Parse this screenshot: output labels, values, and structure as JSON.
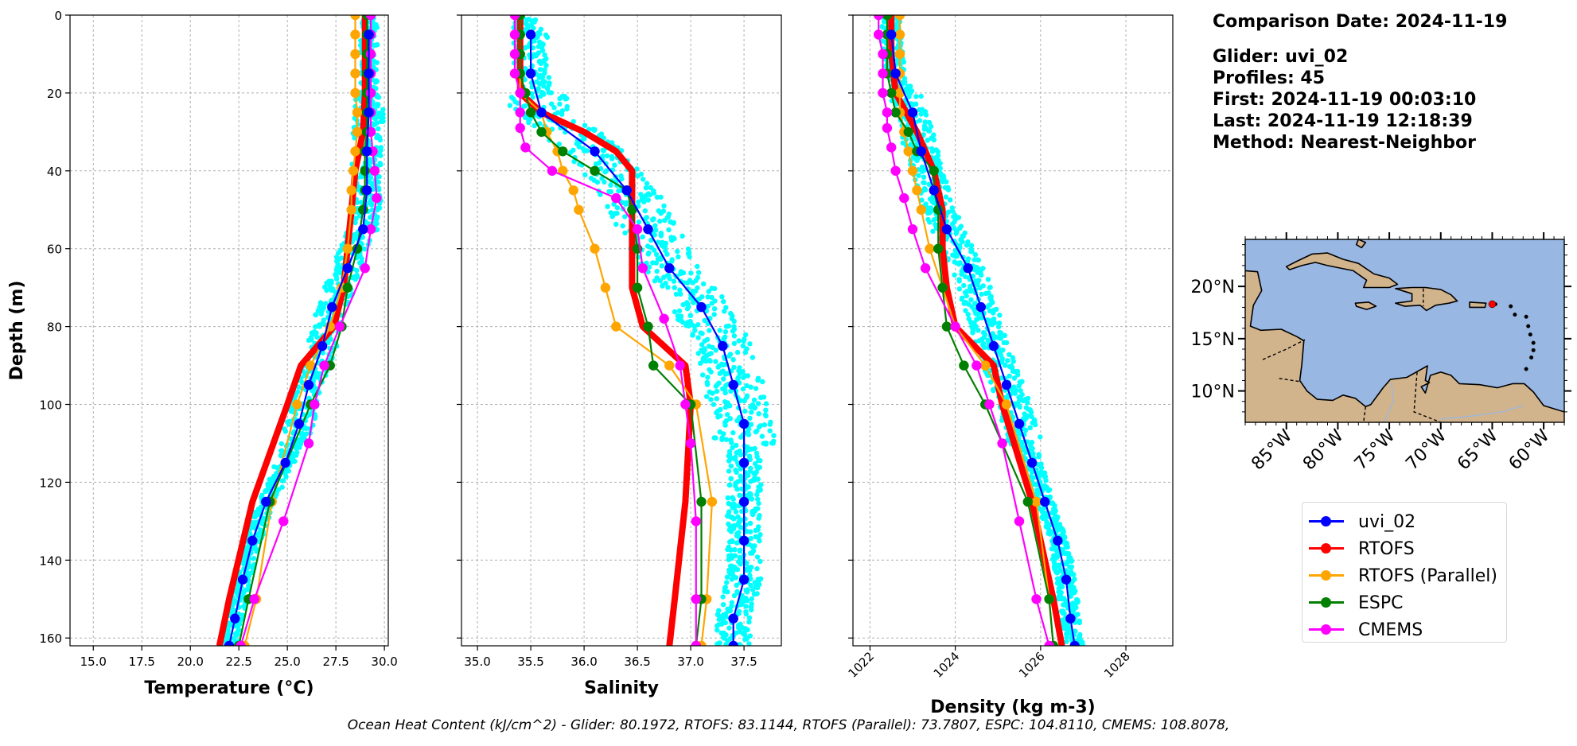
{
  "info": {
    "comparison_date": "Comparison Date: 2024-11-19",
    "glider": "Glider: uvi_02",
    "profiles": "Profiles: 45",
    "first": "First: 2024-11-19 00:03:10",
    "last": "Last: 2024-11-19 12:18:39",
    "method": "Method: Nearest-Neighbor"
  },
  "footer": "Ocean Heat Content (kJ/cm^2) - Glider: 80.1972,  RTOFS: 83.1144,  RTOFS (Parallel): 73.7807,  ESPC: 104.8110,  CMEMS: 108.8078,",
  "legend": [
    {
      "name": "uvi_02",
      "color": "#0000ff"
    },
    {
      "name": "RTOFS",
      "color": "#ff0000"
    },
    {
      "name": "RTOFS (Parallel)",
      "color": "#ffa500"
    },
    {
      "name": "ESPC",
      "color": "#008000"
    },
    {
      "name": "CMEMS",
      "color": "#ff00ff"
    }
  ],
  "colors": {
    "glider_scatter": "#00ffff",
    "ocean": "#99b7e3",
    "land": "#d2b48c",
    "glider_position": "#ff0000"
  },
  "chart_data": [
    {
      "type": "line",
      "xlabel": "Temperature (°C)",
      "ylabel": "Depth (m)",
      "xlim": [
        13.8,
        30.2
      ],
      "ylim": [
        162,
        0
      ],
      "xticks": [
        "15.0",
        "17.5",
        "20.0",
        "22.5",
        "25.0",
        "27.5",
        "30.0"
      ],
      "yticks": [
        "0",
        "20",
        "40",
        "60",
        "80",
        "100",
        "120",
        "140",
        "160"
      ],
      "grid": true,
      "series": [
        {
          "name": "uvi_02",
          "depth": [
            5,
            15,
            25,
            35,
            45,
            55,
            65,
            75,
            85,
            95,
            105,
            115,
            125,
            135,
            145,
            155,
            162
          ],
          "values": [
            29.2,
            29.2,
            29.2,
            29.1,
            29.1,
            28.9,
            28.1,
            27.3,
            26.8,
            26.1,
            25.6,
            24.9,
            23.9,
            23.2,
            22.7,
            22.3,
            22.0
          ]
        },
        {
          "name": "RTOFS",
          "depth": [
            0,
            10,
            20,
            30,
            40,
            50,
            60,
            70,
            80,
            90,
            100,
            125,
            150,
            162
          ],
          "values": [
            29.0,
            29.0,
            29.0,
            28.9,
            28.5,
            28.3,
            28.1,
            27.9,
            27.4,
            25.7,
            25.0,
            23.2,
            22.0,
            21.5
          ]
        },
        {
          "name": "RTOFS (Parallel)",
          "depth": [
            0,
            5,
            10,
            15,
            20,
            25,
            30,
            35,
            40,
            45,
            50,
            60,
            70,
            80,
            90,
            100,
            125,
            150,
            162
          ],
          "values": [
            28.5,
            28.5,
            28.5,
            28.5,
            28.5,
            28.6,
            28.6,
            28.5,
            28.4,
            28.3,
            28.3,
            28.1,
            27.8,
            27.2,
            26.2,
            25.5,
            24.2,
            23.4,
            22.8
          ]
        },
        {
          "name": "ESPC",
          "depth": [
            0,
            5,
            10,
            15,
            20,
            25,
            30,
            35,
            40,
            45,
            50,
            60,
            70,
            80,
            90,
            100,
            125,
            150,
            162
          ],
          "values": [
            29.1,
            29.1,
            29.1,
            29.1,
            29.1,
            29.1,
            29.1,
            29.0,
            29.0,
            29.0,
            28.9,
            28.6,
            28.1,
            27.8,
            27.2,
            26.2,
            24.1,
            23.0,
            22.5
          ]
        },
        {
          "name": "CMEMS",
          "depth": [
            0,
            5,
            10,
            15,
            20,
            25,
            30,
            35,
            40,
            47,
            55,
            65,
            80,
            90,
            100,
            110,
            130,
            150,
            162
          ],
          "values": [
            29.3,
            29.3,
            29.3,
            29.3,
            29.3,
            29.3,
            29.3,
            29.4,
            29.5,
            29.6,
            29.3,
            29.0,
            27.7,
            26.9,
            26.4,
            26.1,
            24.8,
            23.3,
            22.6
          ]
        }
      ]
    },
    {
      "type": "line",
      "xlabel": "Salinity",
      "ylabel": "",
      "xlim": [
        34.85,
        37.85
      ],
      "ylim": [
        162,
        0
      ],
      "xticks": [
        "35.0",
        "35.5",
        "36.0",
        "36.5",
        "37.0",
        "37.5"
      ],
      "yticks": [
        "0",
        "20",
        "40",
        "60",
        "80",
        "100",
        "120",
        "140",
        "160"
      ],
      "grid": true,
      "series": [
        {
          "name": "uvi_02",
          "depth": [
            5,
            15,
            25,
            35,
            45,
            55,
            65,
            75,
            85,
            95,
            105,
            115,
            125,
            135,
            145,
            155,
            162
          ],
          "values": [
            35.5,
            35.5,
            35.6,
            36.1,
            36.4,
            36.6,
            36.8,
            37.1,
            37.3,
            37.4,
            37.5,
            37.5,
            37.5,
            37.5,
            37.5,
            37.4,
            37.4
          ]
        },
        {
          "name": "RTOFS",
          "depth": [
            0,
            10,
            20,
            25,
            30,
            35,
            40,
            50,
            60,
            70,
            80,
            90,
            100,
            125,
            150,
            162
          ],
          "values": [
            35.4,
            35.4,
            35.4,
            35.6,
            36.0,
            36.3,
            36.45,
            36.45,
            36.45,
            36.45,
            36.55,
            36.95,
            37.0,
            36.95,
            36.85,
            36.8
          ]
        },
        {
          "name": "RTOFS (Parallel)",
          "depth": [
            0,
            5,
            10,
            15,
            20,
            25,
            30,
            35,
            40,
            45,
            50,
            60,
            70,
            80,
            90,
            100,
            125,
            150,
            162
          ],
          "values": [
            35.4,
            35.4,
            35.4,
            35.4,
            35.4,
            35.6,
            35.65,
            35.75,
            35.8,
            35.9,
            35.95,
            36.1,
            36.2,
            36.3,
            36.8,
            37.05,
            37.2,
            37.15,
            37.1
          ]
        },
        {
          "name": "ESPC",
          "depth": [
            0,
            5,
            10,
            15,
            20,
            25,
            30,
            35,
            40,
            45,
            50,
            60,
            70,
            80,
            90,
            100,
            125,
            150,
            162
          ],
          "values": [
            35.4,
            35.4,
            35.4,
            35.4,
            35.45,
            35.5,
            35.6,
            35.8,
            36.1,
            36.4,
            36.45,
            36.5,
            36.5,
            36.6,
            36.65,
            37.0,
            37.1,
            37.1,
            37.05
          ]
        },
        {
          "name": "CMEMS",
          "depth": [
            0,
            5,
            10,
            15,
            20,
            25,
            29,
            34,
            40,
            47,
            55,
            65,
            78,
            90,
            100,
            110,
            130,
            150,
            162
          ],
          "values": [
            35.35,
            35.35,
            35.35,
            35.35,
            35.4,
            35.4,
            35.4,
            35.45,
            35.7,
            36.3,
            36.5,
            36.55,
            36.75,
            36.9,
            36.95,
            37.0,
            37.05,
            37.05,
            37.05
          ]
        }
      ]
    },
    {
      "type": "line",
      "xlabel": "Density (kg m-3)",
      "ylabel": "",
      "xlim": [
        1021.6,
        1029.1
      ],
      "ylim": [
        162,
        0
      ],
      "xticks": [
        "1022",
        "1024",
        "1026",
        "1028"
      ],
      "yticks": [
        "0",
        "20",
        "40",
        "60",
        "80",
        "100",
        "120",
        "140",
        "160"
      ],
      "grid": true,
      "series": [
        {
          "name": "uvi_02",
          "depth": [
            5,
            15,
            25,
            35,
            45,
            55,
            65,
            75,
            85,
            95,
            105,
            115,
            125,
            135,
            145,
            155,
            162
          ],
          "values": [
            1022.5,
            1022.6,
            1023.0,
            1023.2,
            1023.5,
            1023.8,
            1024.3,
            1024.6,
            1024.9,
            1025.2,
            1025.5,
            1025.8,
            1026.1,
            1026.4,
            1026.6,
            1026.7,
            1026.8
          ]
        },
        {
          "name": "RTOFS",
          "depth": [
            0,
            10,
            20,
            30,
            40,
            50,
            60,
            70,
            80,
            90,
            100,
            125,
            150,
            162
          ],
          "values": [
            1022.5,
            1022.5,
            1022.6,
            1023.1,
            1023.5,
            1023.7,
            1023.7,
            1023.8,
            1024.0,
            1024.9,
            1025.1,
            1025.8,
            1026.3,
            1026.5
          ]
        },
        {
          "name": "RTOFS (Parallel)",
          "depth": [
            0,
            5,
            10,
            15,
            20,
            25,
            30,
            35,
            40,
            45,
            50,
            60,
            70,
            80,
            90,
            100,
            125,
            150,
            162
          ],
          "values": [
            1022.7,
            1022.7,
            1022.7,
            1022.7,
            1022.7,
            1022.7,
            1022.8,
            1022.9,
            1023.0,
            1023.1,
            1023.2,
            1023.4,
            1023.7,
            1024.0,
            1024.7,
            1025.2,
            1025.9,
            1026.2,
            1026.3
          ]
        },
        {
          "name": "ESPC",
          "depth": [
            0,
            5,
            10,
            15,
            20,
            25,
            30,
            35,
            40,
            45,
            50,
            60,
            70,
            80,
            90,
            100,
            125,
            150,
            162
          ],
          "values": [
            1022.4,
            1022.4,
            1022.4,
            1022.4,
            1022.5,
            1022.6,
            1022.9,
            1023.1,
            1023.5,
            1023.5,
            1023.6,
            1023.6,
            1023.7,
            1023.8,
            1024.2,
            1024.7,
            1025.7,
            1026.2,
            1026.3
          ]
        },
        {
          "name": "CMEMS",
          "depth": [
            0,
            5,
            10,
            15,
            20,
            25,
            29,
            34,
            40,
            47,
            55,
            65,
            80,
            90,
            100,
            110,
            130,
            150,
            162
          ],
          "values": [
            1022.2,
            1022.2,
            1022.3,
            1022.3,
            1022.3,
            1022.4,
            1022.4,
            1022.5,
            1022.6,
            1022.8,
            1023.0,
            1023.3,
            1024.0,
            1024.5,
            1024.8,
            1025.1,
            1025.5,
            1025.9,
            1026.2
          ]
        }
      ]
    },
    {
      "type": "map",
      "lat_ticks": [
        "10°N",
        "15°N",
        "20°N"
      ],
      "lon_ticks": [
        "85°W",
        "80°W",
        "75°W",
        "70°W",
        "65°W",
        "60°W"
      ],
      "lon_range": [
        -89,
        -58
      ],
      "lat_range": [
        7,
        24.5
      ],
      "glider_position": {
        "lon": -65,
        "lat": 18.3
      }
    }
  ]
}
